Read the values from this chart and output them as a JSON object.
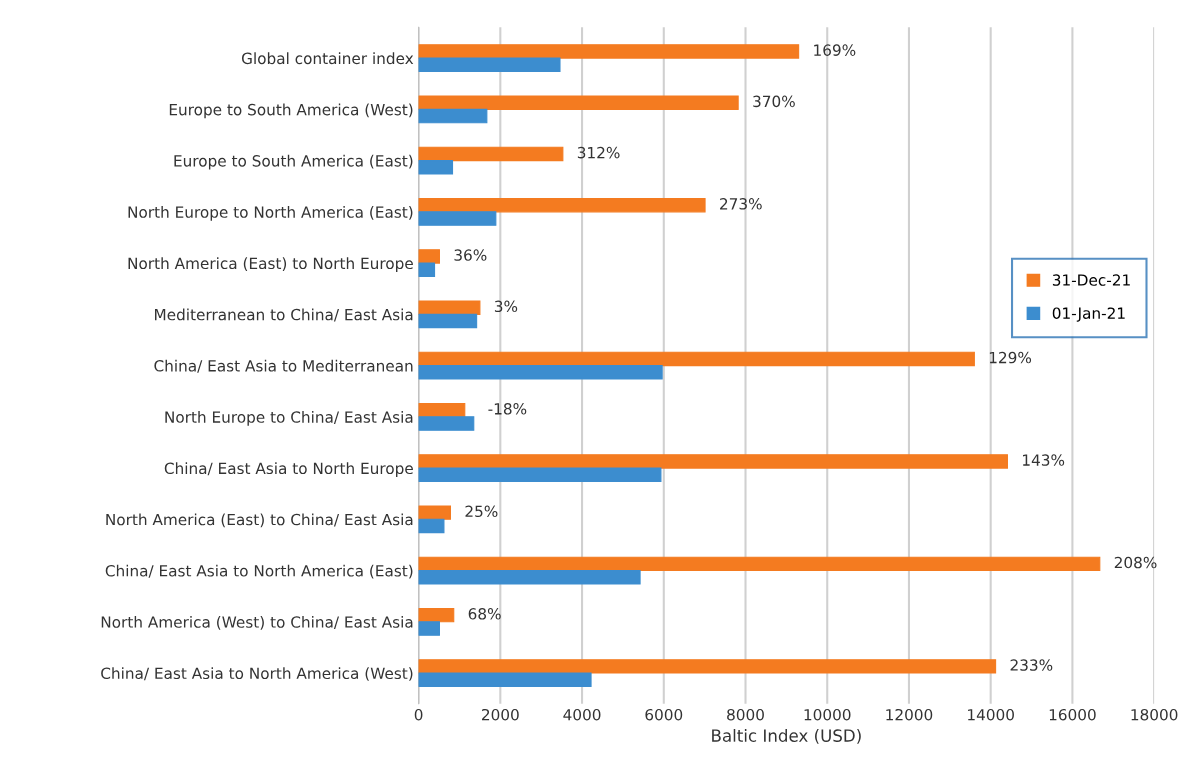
{
  "chart_data": {
    "type": "bar",
    "orientation": "horizontal",
    "xlabel": "Baltic Index (USD)",
    "categories": [
      "Global container index",
      "Europe to South America (West)",
      "Europe to South America (East)",
      "North Europe to North America (East)",
      "North America (East) to North Europe",
      "Mediterranean to China/ East Asia",
      "China/ East Asia to Mediterranean",
      "North Europe to China/ East Asia",
      "China/ East Asia to North Europe",
      "North America (East) to China/ East Asia",
      "China/ East Asia to North America (East)",
      "North America (West) to China/ East Asia",
      "China/ East Asia to North America (West)"
    ],
    "series": [
      {
        "name": "31-Dec-21",
        "color": "#f47b20",
        "values": [
          9300,
          7820,
          3530,
          7010,
          510,
          1500,
          13600,
          1130,
          14410,
          780,
          16670,
          860,
          14120
        ]
      },
      {
        "name": "01-Jan-21",
        "color": "#3c8dcf",
        "values": [
          3460,
          1670,
          830,
          1890,
          390,
          1420,
          5960,
          1350,
          5930,
          620,
          5420,
          510,
          4220
        ]
      }
    ],
    "annotations": [
      {
        "text": "169%",
        "x": 9300,
        "y": "Global container index"
      },
      {
        "text": "370%",
        "x": 7820,
        "y": "Europe to South America (West)"
      },
      {
        "text": "312%",
        "x": 3530,
        "y": "Europe to South America (East)"
      },
      {
        "text": "273%",
        "x": 7010,
        "y": "North Europe to North America (East)"
      },
      {
        "text": "36%",
        "x": 510,
        "y": "North America (East) to North Europe"
      },
      {
        "text": "3%",
        "x": 1500,
        "y": "Mediterranean to China/ East Asia"
      },
      {
        "text": "129%",
        "x": 13600,
        "y": "China/ East Asia to Mediterranean"
      },
      {
        "text": "-18%",
        "x": 1350,
        "y": "North Europe to China/ East Asia"
      },
      {
        "text": "143%",
        "x": 14410,
        "y": "China/ East Asia to North Europe"
      },
      {
        "text": "25%",
        "x": 780,
        "y": "North America (East) to China/ East Asia"
      },
      {
        "text": "208%",
        "x": 16670,
        "y": "China/ East Asia to North America (East)"
      },
      {
        "text": "68%",
        "x": 860,
        "y": "North America (West) to China/ East Asia"
      },
      {
        "text": "233%",
        "x": 14120,
        "y": "China/ East Asia to North America (West)"
      }
    ],
    "xlim": [
      0,
      18000
    ],
    "xticks": [
      0,
      2000,
      4000,
      6000,
      8000,
      10000,
      12000,
      14000,
      16000,
      18000
    ],
    "grid": "x",
    "legend": "right"
  }
}
